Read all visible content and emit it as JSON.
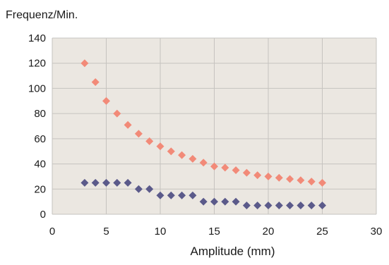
{
  "chart_data": {
    "type": "scatter",
    "ylabel": "Frequenz/Min.",
    "xlabel": "Amplitude (mm)",
    "xlim": [
      0,
      30
    ],
    "ylim": [
      0,
      140
    ],
    "x_ticks": [
      0,
      5,
      10,
      15,
      20,
      25,
      30
    ],
    "y_ticks": [
      0,
      20,
      40,
      60,
      80,
      100,
      120,
      140
    ],
    "grid": true,
    "plot_background": "#ebe7e1",
    "grid_color": "#c6c3bf",
    "series": [
      {
        "color": "#f28a78",
        "marker": "diamond",
        "x": [
          3,
          4,
          5,
          6,
          7,
          8,
          9,
          10,
          11,
          12,
          13,
          14,
          15,
          16,
          17,
          18,
          19,
          20,
          21,
          22,
          23,
          24,
          25
        ],
        "y": [
          120,
          105,
          90,
          80,
          71,
          64,
          58,
          54,
          50,
          47,
          44,
          41,
          38,
          37,
          35,
          33,
          31,
          30,
          29,
          28,
          27,
          26,
          25
        ]
      },
      {
        "color": "#5b5a8a",
        "marker": "diamond",
        "x": [
          3,
          4,
          5,
          6,
          7,
          8,
          9,
          10,
          11,
          12,
          13,
          14,
          15,
          16,
          17,
          18,
          19,
          20,
          21,
          22,
          23,
          24,
          25
        ],
        "y": [
          25,
          25,
          25,
          25,
          25,
          20,
          20,
          15,
          15,
          15,
          15,
          10,
          10,
          10,
          10,
          7,
          7,
          7,
          7,
          7,
          7,
          7,
          7
        ]
      }
    ]
  }
}
